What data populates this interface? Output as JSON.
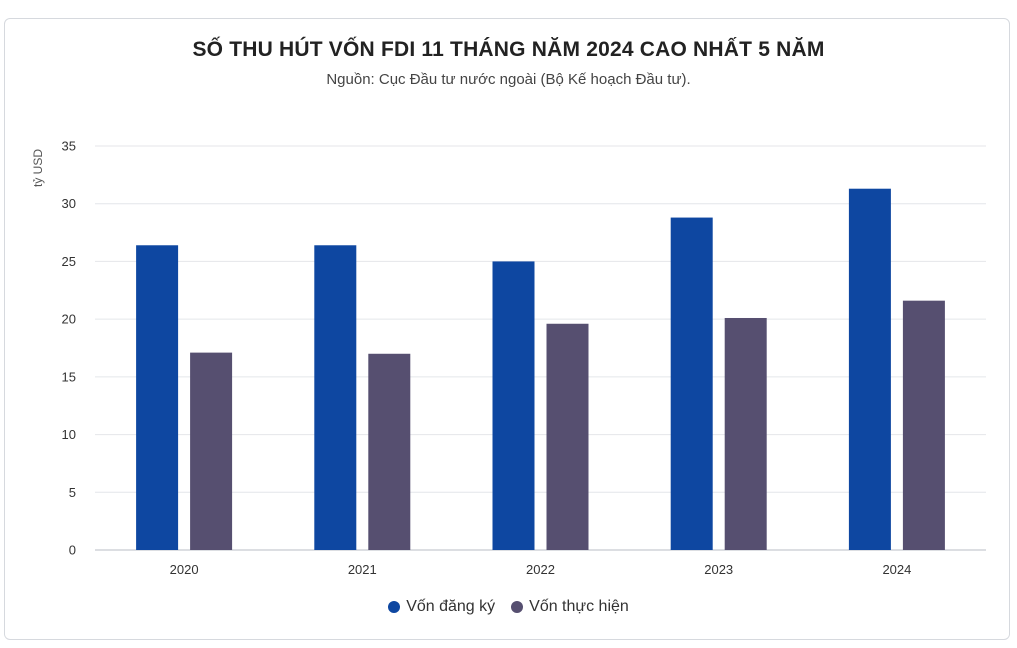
{
  "chart_data": {
    "type": "bar",
    "title": "SỐ THU HÚT VỐN FDI 11 THÁNG NĂM 2024 CAO NHẤT 5 NĂM",
    "subtitle": "Nguồn: Cục Đầu tư nước ngoài (Bộ Kế hoạch Đầu tư).",
    "xlabel": "",
    "ylabel": "tỷ USD",
    "categories": [
      "2020",
      "2021",
      "2022",
      "2023",
      "2024"
    ],
    "series": [
      {
        "name": "Vốn đăng ký",
        "color": "#0e47a1",
        "values": [
          26.4,
          26.4,
          25.0,
          28.8,
          31.3
        ]
      },
      {
        "name": "Vốn thực hiện",
        "color": "#564f70",
        "values": [
          17.1,
          17.0,
          19.6,
          20.1,
          21.6
        ]
      }
    ],
    "ylim": [
      0,
      35
    ],
    "yticks": [
      0,
      5,
      10,
      15,
      20,
      25,
      30,
      35
    ],
    "grid": true,
    "legend_position": "bottom-center"
  }
}
